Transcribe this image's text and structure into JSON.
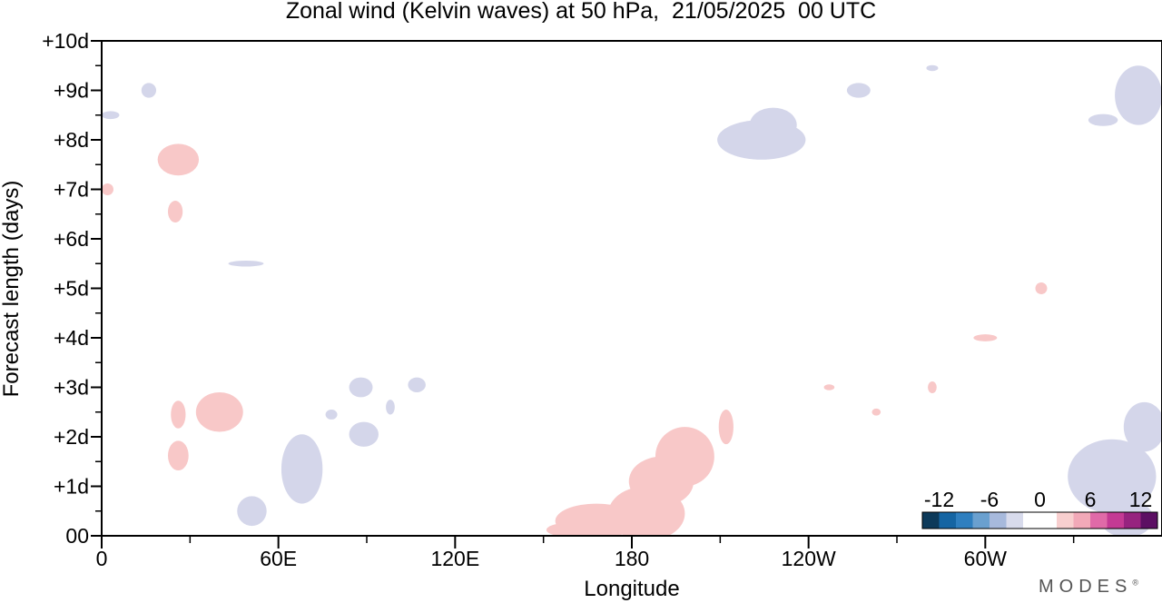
{
  "chart_data": {
    "type": "heatmap",
    "title": "Zonal wind (Kelvin waves) at 50 hPa,  21/05/2025  00 UTC",
    "xlabel": "Longitude",
    "ylabel": "Forecast length (days)",
    "x_range": [
      0,
      360
    ],
    "y_range": [
      0,
      10
    ],
    "x_ticks": [
      {
        "lon": 0,
        "label": "0"
      },
      {
        "lon": 60,
        "label": "60E"
      },
      {
        "lon": 120,
        "label": "120E"
      },
      {
        "lon": 180,
        "label": "180"
      },
      {
        "lon": 240,
        "label": "120W"
      },
      {
        "lon": 300,
        "label": "60W"
      }
    ],
    "x_minor_ticks": [
      30,
      90,
      150,
      210,
      270,
      330
    ],
    "y_ticks": [
      {
        "day": 0,
        "label": "00"
      },
      {
        "day": 1,
        "label": "+1d"
      },
      {
        "day": 2,
        "label": "+2d"
      },
      {
        "day": 3,
        "label": "+3d"
      },
      {
        "day": 4,
        "label": "+4d"
      },
      {
        "day": 5,
        "label": "+5d"
      },
      {
        "day": 6,
        "label": "+6d"
      },
      {
        "day": 7,
        "label": "+7d"
      },
      {
        "day": 8,
        "label": "+8d"
      },
      {
        "day": 9,
        "label": "+9d"
      },
      {
        "day": 10,
        "label": "+10d"
      }
    ],
    "colorbar": {
      "labels": [
        {
          "value": -12,
          "label": "-12"
        },
        {
          "value": -6,
          "label": "-6"
        },
        {
          "value": 0,
          "label": "0"
        },
        {
          "value": 6,
          "label": "6"
        },
        {
          "value": 12,
          "label": "12"
        }
      ],
      "colors": [
        "#0d3a5a",
        "#1565a3",
        "#2f7fbf",
        "#6aa0cf",
        "#a7b9dc",
        "#d8dbec",
        "#ffffff",
        "#ffffff",
        "#f8cfcf",
        "#f2a9b8",
        "#e06aa8",
        "#c43a94",
        "#97237f",
        "#5c0f63"
      ]
    },
    "series": [
      {
        "sign": "positive",
        "color": "#f8c8c8",
        "regions": [
          {
            "cx": 185,
            "cy": 0.45,
            "rx": 13,
            "ry": 0.55
          },
          {
            "cx": 168,
            "cy": 0.3,
            "rx": 14,
            "ry": 0.35
          },
          {
            "cx": 160,
            "cy": 0.12,
            "rx": 9,
            "ry": 0.15
          },
          {
            "cx": 198,
            "cy": 1.6,
            "rx": 10,
            "ry": 0.6
          },
          {
            "cx": 190,
            "cy": 1.1,
            "rx": 11,
            "ry": 0.5
          },
          {
            "cx": 212,
            "cy": 2.2,
            "rx": 2.5,
            "ry": 0.35
          },
          {
            "cx": 40,
            "cy": 2.5,
            "rx": 8,
            "ry": 0.4
          },
          {
            "cx": 26,
            "cy": 2.45,
            "rx": 2.5,
            "ry": 0.28
          },
          {
            "cx": 26,
            "cy": 1.62,
            "rx": 3.5,
            "ry": 0.3
          },
          {
            "cx": 26,
            "cy": 7.6,
            "rx": 7,
            "ry": 0.32
          },
          {
            "cx": 25,
            "cy": 6.55,
            "rx": 2.5,
            "ry": 0.22
          },
          {
            "cx": 2,
            "cy": 7.0,
            "rx": 2,
            "ry": 0.12
          },
          {
            "cx": 319,
            "cy": 5.0,
            "rx": 2,
            "ry": 0.12
          },
          {
            "cx": 300,
            "cy": 4.0,
            "rx": 4,
            "ry": 0.07
          },
          {
            "cx": 282,
            "cy": 3.0,
            "rx": 1.5,
            "ry": 0.12
          },
          {
            "cx": 263,
            "cy": 2.5,
            "rx": 1.5,
            "ry": 0.07
          },
          {
            "cx": 247,
            "cy": 3.0,
            "rx": 1.8,
            "ry": 0.06
          }
        ]
      },
      {
        "sign": "negative",
        "color": "#d4d6ea",
        "regions": [
          {
            "cx": 343,
            "cy": 1.2,
            "rx": 15,
            "ry": 0.75
          },
          {
            "cx": 354,
            "cy": 2.2,
            "rx": 7,
            "ry": 0.5
          },
          {
            "cx": 348,
            "cy": 0.35,
            "rx": 9,
            "ry": 0.38
          },
          {
            "cx": 352,
            "cy": 8.9,
            "rx": 8,
            "ry": 0.6
          },
          {
            "cx": 340,
            "cy": 8.4,
            "rx": 5,
            "ry": 0.12
          },
          {
            "cx": 224,
            "cy": 8.0,
            "rx": 15,
            "ry": 0.4
          },
          {
            "cx": 228,
            "cy": 8.3,
            "rx": 8,
            "ry": 0.35
          },
          {
            "cx": 257,
            "cy": 9.0,
            "rx": 4,
            "ry": 0.15
          },
          {
            "cx": 282,
            "cy": 9.45,
            "rx": 2,
            "ry": 0.06
          },
          {
            "cx": 68,
            "cy": 1.35,
            "rx": 7,
            "ry": 0.7
          },
          {
            "cx": 51,
            "cy": 0.5,
            "rx": 5,
            "ry": 0.3
          },
          {
            "cx": 88,
            "cy": 3.0,
            "rx": 4,
            "ry": 0.2
          },
          {
            "cx": 89,
            "cy": 2.05,
            "rx": 5,
            "ry": 0.25
          },
          {
            "cx": 107,
            "cy": 3.05,
            "rx": 3,
            "ry": 0.15
          },
          {
            "cx": 78,
            "cy": 2.45,
            "rx": 2,
            "ry": 0.1
          },
          {
            "cx": 98,
            "cy": 2.6,
            "rx": 1.5,
            "ry": 0.15
          },
          {
            "cx": 49,
            "cy": 5.5,
            "rx": 6,
            "ry": 0.06
          },
          {
            "cx": 16,
            "cy": 9.0,
            "rx": 2.5,
            "ry": 0.15
          },
          {
            "cx": 3,
            "cy": 8.5,
            "rx": 3,
            "ry": 0.08
          }
        ]
      }
    ]
  },
  "brand": {
    "name": "MODES",
    "mark": "®"
  }
}
